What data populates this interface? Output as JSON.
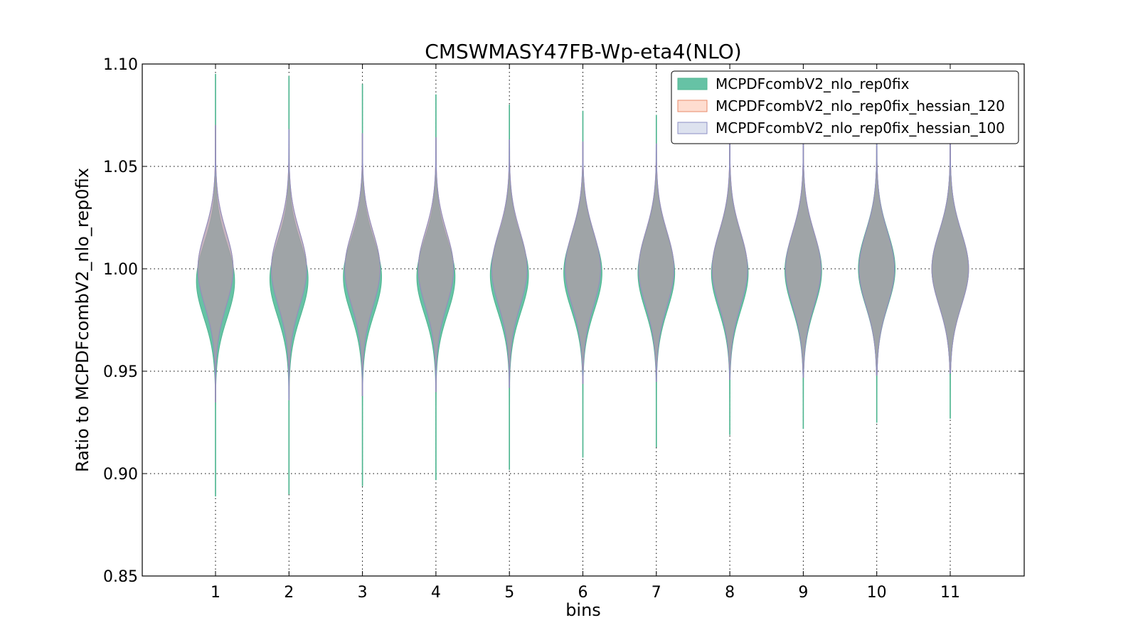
{
  "chart_data": {
    "type": "violin",
    "title": "CMSWMASY47FB-Wp-eta4(NLO)",
    "xlabel": "bins",
    "ylabel": "Ratio to MCPDFcombV2_nlo_rep0fix",
    "ylim": [
      0.85,
      1.1
    ],
    "yticks": [
      "0.85",
      "0.90",
      "0.95",
      "1.00",
      "1.05",
      "1.10"
    ],
    "categories": [
      "1",
      "2",
      "3",
      "4",
      "5",
      "6",
      "7",
      "8",
      "9",
      "10",
      "11"
    ],
    "grid": true,
    "legend_position": "top-right",
    "series": [
      {
        "name": "MCPDFcombV2_nlo_rep0fix",
        "color": "#66c2a5",
        "edge": "#4db58f",
        "min": [
          0.889,
          0.89,
          0.894,
          0.897,
          0.902,
          0.908,
          0.913,
          0.919,
          0.922,
          0.925,
          0.927
        ],
        "max": [
          1.095,
          1.094,
          1.09,
          1.085,
          1.08,
          1.077,
          1.075,
          1.072,
          1.07,
          1.068,
          1.066
        ],
        "mode": [
          0.994,
          0.995,
          0.996,
          0.996,
          0.997,
          0.998,
          0.998,
          0.998,
          0.999,
          1.0,
          1.0
        ],
        "half_width": [
          0.26,
          0.26,
          0.26,
          0.26,
          0.26,
          0.26,
          0.25,
          0.25,
          0.25,
          0.25,
          0.25
        ]
      },
      {
        "name": "MCPDFcombV2_nlo_rep0fix_hessian_120",
        "color": "#fc8d62",
        "edge": "#e88a6a",
        "min": [
          0.935,
          0.936,
          0.938,
          0.94,
          0.942,
          0.944,
          0.945,
          0.946,
          0.947,
          0.948,
          0.949
        ],
        "max": [
          1.07,
          1.068,
          1.066,
          1.064,
          1.063,
          1.062,
          1.061,
          1.061,
          1.061,
          1.061,
          1.061
        ],
        "mode": [
          1.0,
          1.0,
          1.0,
          1.0,
          1.0,
          1.0,
          1.0,
          1.0,
          1.0,
          1.0,
          1.0
        ],
        "half_width": [
          0.24,
          0.24,
          0.24,
          0.24,
          0.24,
          0.24,
          0.24,
          0.24,
          0.24,
          0.24,
          0.25
        ]
      },
      {
        "name": "MCPDFcombV2_nlo_rep0fix_hessian_100",
        "color": "#8da0cb",
        "edge": "#8c8fc4",
        "min": [
          0.935,
          0.936,
          0.938,
          0.94,
          0.942,
          0.944,
          0.945,
          0.946,
          0.947,
          0.948,
          0.949
        ],
        "max": [
          1.07,
          1.068,
          1.066,
          1.064,
          1.063,
          1.062,
          1.061,
          1.061,
          1.061,
          1.061,
          1.061
        ],
        "mode": [
          1.0,
          1.0,
          1.0,
          1.0,
          1.0,
          1.0,
          1.0,
          1.0,
          1.0,
          1.0,
          1.0
        ],
        "half_width": [
          0.24,
          0.24,
          0.24,
          0.24,
          0.24,
          0.24,
          0.24,
          0.24,
          0.24,
          0.24,
          0.25
        ]
      }
    ]
  }
}
